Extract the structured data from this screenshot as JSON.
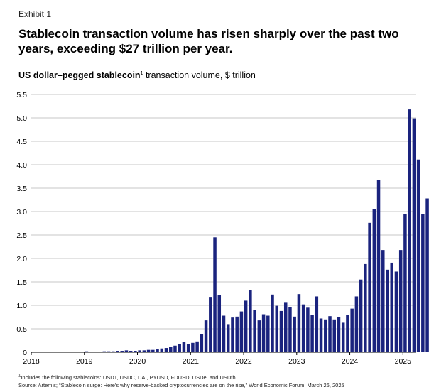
{
  "header": {
    "exhibit": "Exhibit 1",
    "title": "Stablecoin transaction volume has risen sharply over the past two years, exceeding $27 trillion per year.",
    "subtitle_bold": "US dollar–pegged stablecoin",
    "subtitle_marker": "1",
    "subtitle_rest": " transaction volume, $ trillion"
  },
  "footnotes": {
    "note1_marker": "1",
    "note1": "Includes the following stablecoins: USDT, USDC, DAI, PYUSD, FDUSD, USDe, and USDtb.",
    "source": "Source: Artemis; “Stablecoin surge: Here’s why reserve-backed cryptocurrencies are on the rise,” World Economic Forum, March 26, 2025"
  },
  "chart_data": {
    "type": "bar",
    "title": "US dollar–pegged stablecoin transaction volume, $ trillion",
    "xlabel": "",
    "ylabel": "",
    "ylim": [
      0,
      5.5
    ],
    "yticks": [
      0,
      0.5,
      1.0,
      1.5,
      2.0,
      2.5,
      3.0,
      3.5,
      4.0,
      4.5,
      5.0,
      5.5
    ],
    "ytick_labels": [
      "0",
      "0.5",
      "1.0",
      "1.5",
      "2.0",
      "2.5",
      "3.0",
      "3.5",
      "4.0",
      "4.5",
      "5.0",
      "5.5"
    ],
    "xtick_labels": [
      "2018",
      "2019",
      "2020",
      "2021",
      "2022",
      "2023",
      "2024",
      "2025"
    ],
    "grid": "horizontal",
    "bar_color": "#1a237e",
    "start_period": "2018-01",
    "frequency": "monthly",
    "values": [
      0,
      0,
      0,
      0,
      0,
      0,
      0,
      0,
      0,
      0,
      0,
      0.01,
      0.02,
      0.01,
      0.01,
      0.01,
      0.02,
      0.02,
      0.02,
      0.03,
      0.03,
      0.04,
      0.03,
      0.03,
      0.04,
      0.04,
      0.05,
      0.05,
      0.06,
      0.08,
      0.09,
      0.11,
      0.14,
      0.18,
      0.22,
      0.18,
      0.2,
      0.23,
      0.38,
      0.68,
      1.18,
      2.45,
      1.22,
      0.78,
      0.6,
      0.74,
      0.76,
      0.87,
      1.1,
      1.32,
      0.9,
      0.68,
      0.81,
      0.78,
      1.23,
      0.99,
      0.88,
      1.07,
      0.96,
      0.76,
      1.24,
      1.02,
      0.95,
      0.8,
      1.19,
      0.72,
      0.7,
      0.77,
      0.7,
      0.75,
      0.63,
      0.79,
      0.93,
      1.19,
      1.55,
      1.88,
      2.76,
      3.05,
      3.68,
      2.18,
      1.76,
      1.91,
      1.72,
      2.18,
      2.95,
      5.18,
      4.99,
      4.11,
      2.95,
      3.28
    ]
  }
}
